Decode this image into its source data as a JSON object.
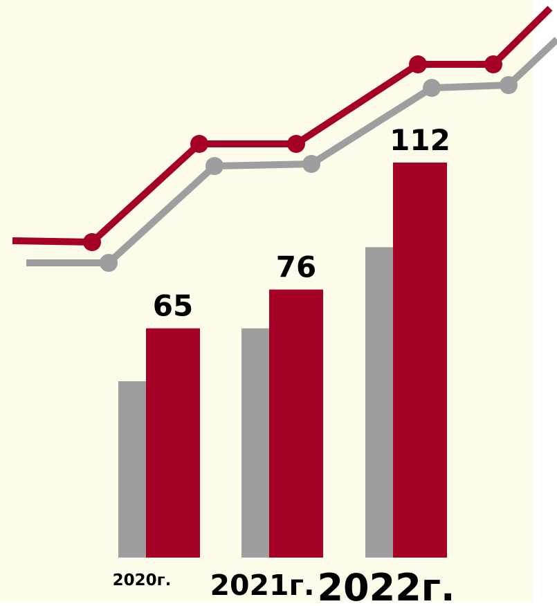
{
  "chart_data": {
    "type": "bar",
    "title": "",
    "xlabel": "",
    "ylabel": "",
    "categories": [
      "2020г.",
      "2021г.",
      "2022г."
    ],
    "series": [
      {
        "values": [
          50,
          65,
          88
        ]
      },
      {
        "values": [
          65,
          76,
          112
        ]
      }
    ],
    "data_labels": [
      "65",
      "76",
      "112"
    ],
    "ylim": [
      0,
      112
    ],
    "grid": false,
    "legend": "none",
    "decorative_trend_lines": true
  },
  "colors": {
    "background": "#fdfbe9",
    "primary": "#a50026",
    "secondary": "#9e9e9e",
    "text": "#000000"
  }
}
